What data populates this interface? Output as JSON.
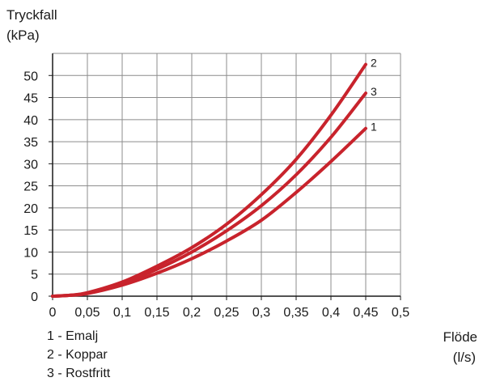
{
  "chart_data": {
    "type": "line",
    "ylabel_line1": "Tryckfall",
    "ylabel_line2": "(kPa)",
    "xlabel_line1": "Flöde",
    "xlabel_line2": "(l/s)",
    "xlim": [
      0,
      0.5
    ],
    "ylim": [
      0,
      55
    ],
    "grid": true,
    "x_ticks": [
      0,
      0.05,
      0.1,
      0.15,
      0.2,
      0.25,
      0.3,
      0.35,
      0.4,
      0.45,
      0.5
    ],
    "x_tick_labels": [
      "0",
      "0,05",
      "0,1",
      "0,15",
      "0,2",
      "0,25",
      "0,3",
      "0,35",
      "0,4",
      "0,45",
      "0,5"
    ],
    "y_ticks": [
      0,
      5,
      10,
      15,
      20,
      25,
      30,
      35,
      40,
      45,
      50
    ],
    "y_tick_labels": [
      "0",
      "5",
      "10",
      "15",
      "20",
      "25",
      "30",
      "35",
      "40",
      "45",
      "50"
    ],
    "x": [
      0,
      0.025,
      0.05,
      0.1,
      0.15,
      0.2,
      0.25,
      0.3,
      0.35,
      0.4,
      0.45
    ],
    "series": [
      {
        "name": "1",
        "color": "#c8232c",
        "values": [
          0,
          0.2,
          0.6,
          2.5,
          5.2,
          8.5,
          12.5,
          17.2,
          23.5,
          30.5,
          38
        ]
      },
      {
        "name": "2",
        "color": "#c8232c",
        "values": [
          0,
          0.2,
          0.8,
          3.2,
          6.8,
          11,
          16.3,
          23,
          31,
          41,
          52.5
        ]
      },
      {
        "name": "3",
        "color": "#c8232c",
        "values": [
          0,
          0.2,
          0.7,
          2.9,
          6.1,
          10,
          14.8,
          20.5,
          27.5,
          36,
          46
        ]
      }
    ],
    "legend": {
      "position": "bottom-left",
      "items": [
        "1 - Emalj",
        "2 - Koppar",
        "3 - Rostfritt"
      ]
    }
  }
}
